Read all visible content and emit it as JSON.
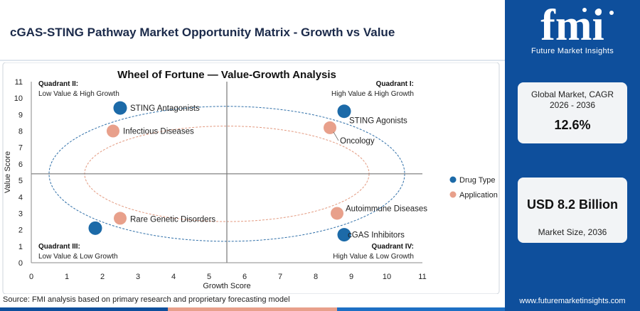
{
  "header": {
    "title": "cGAS-STING Pathway Market Opportunity Matrix - Growth vs Value"
  },
  "brand": {
    "logo_text": "fmi",
    "name": "Future Market Insights",
    "url": "www.futuremarketinsights.com",
    "primary_color": "#0e4f9c"
  },
  "cards": {
    "cagr_label": "Global Market, CAGR 2026 - 2036",
    "cagr_value": "12.6%",
    "size_value": "USD 8.2 Billion",
    "size_label": "Market Size, 2036"
  },
  "source": "Source: FMI analysis based on primary research and proprietary forecasting model",
  "chart_data": {
    "type": "scatter",
    "title": "Wheel of Fortune — Value-Growth Analysis",
    "xlabel": "Growth Score",
    "ylabel": "Value Score",
    "xlim": [
      0,
      11
    ],
    "ylim": [
      0,
      11
    ],
    "x_ticks": [
      0,
      1,
      2,
      3,
      4,
      5,
      6,
      7,
      8,
      9,
      10,
      11
    ],
    "y_ticks": [
      0,
      1,
      2,
      3,
      4,
      5,
      6,
      7,
      8,
      9,
      10,
      11
    ],
    "divider_x": 5.5,
    "divider_y": 5.4,
    "legend": [
      "Drug Type",
      "Application"
    ],
    "legend_position": "right",
    "colors": {
      "Drug Type": "#1c6aa8",
      "Application": "#e8a08b"
    },
    "quadrants": [
      {
        "title": "Quadrant II:",
        "subtitle": "Low Value & High Growth",
        "position": "top-left"
      },
      {
        "title": "Quadrant I:",
        "subtitle": "High Value & High Growth",
        "position": "top-right"
      },
      {
        "title": "Quadrant III:",
        "subtitle": "Low Value & Low Growth",
        "position": "bottom-left"
      },
      {
        "title": "Quadrant IV:",
        "subtitle": "High Value & Low Growth",
        "position": "bottom-right"
      }
    ],
    "series": [
      {
        "name": "Drug Type",
        "points": [
          {
            "label": "STING Antagonists",
            "x": 2.5,
            "y": 9.4
          },
          {
            "label": "STING Agonists",
            "x": 8.8,
            "y": 9.2
          },
          {
            "label": "Rare Genetic Disorders",
            "x": 1.8,
            "y": 2.1
          },
          {
            "label": "cGAS Inhibitors",
            "x": 8.8,
            "y": 1.7
          }
        ]
      },
      {
        "name": "Application",
        "points": [
          {
            "label": "Infectious Diseases",
            "x": 2.3,
            "y": 8.0
          },
          {
            "label": "Oncology",
            "x": 8.4,
            "y": 8.2
          },
          {
            "label": "Rare Genetic Disorders",
            "x": 2.5,
            "y": 2.7
          },
          {
            "label": "Autoimmune Diseases",
            "x": 8.6,
            "y": 3.0
          }
        ]
      }
    ]
  }
}
